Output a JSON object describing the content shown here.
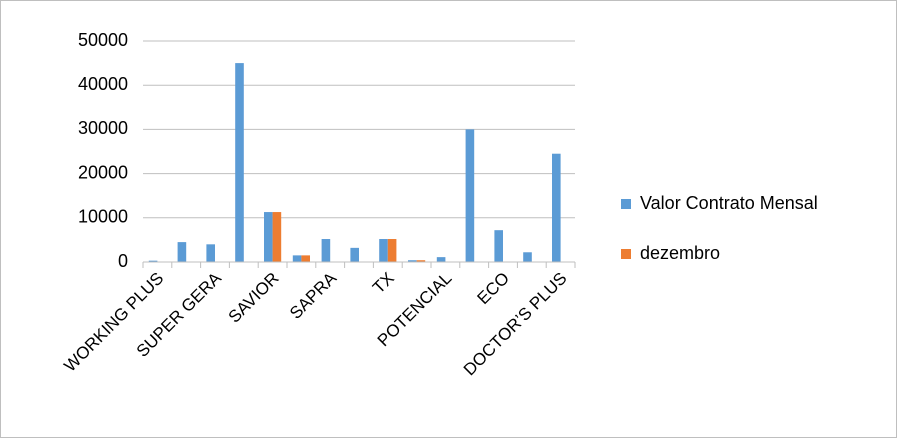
{
  "chart_data": {
    "type": "bar",
    "categories": [
      "WORKING PLUS",
      null,
      "SUPER GERA",
      null,
      "SAVIOR",
      null,
      "SAPRA",
      null,
      "TX",
      null,
      "POTENCIAL",
      null,
      "ECO",
      null,
      "DOCTOR’S PLUS"
    ],
    "series": [
      {
        "name": "Valor Contrato Mensal",
        "color": "#5b9bd5",
        "values": [
          300,
          4500,
          4000,
          45000,
          11300,
          1500,
          5200,
          3200,
          5200,
          400,
          1100,
          30000,
          7200,
          2200,
          24500
        ]
      },
      {
        "name": "dezembro",
        "color": "#ed7d31",
        "values": [
          null,
          null,
          null,
          null,
          11300,
          1500,
          null,
          null,
          5200,
          400,
          null,
          null,
          null,
          null,
          null
        ]
      }
    ],
    "ylim": [
      0,
      50000
    ],
    "yticks": [
      0,
      10000,
      20000,
      30000,
      40000,
      50000
    ],
    "grid": true,
    "legend": "right"
  }
}
